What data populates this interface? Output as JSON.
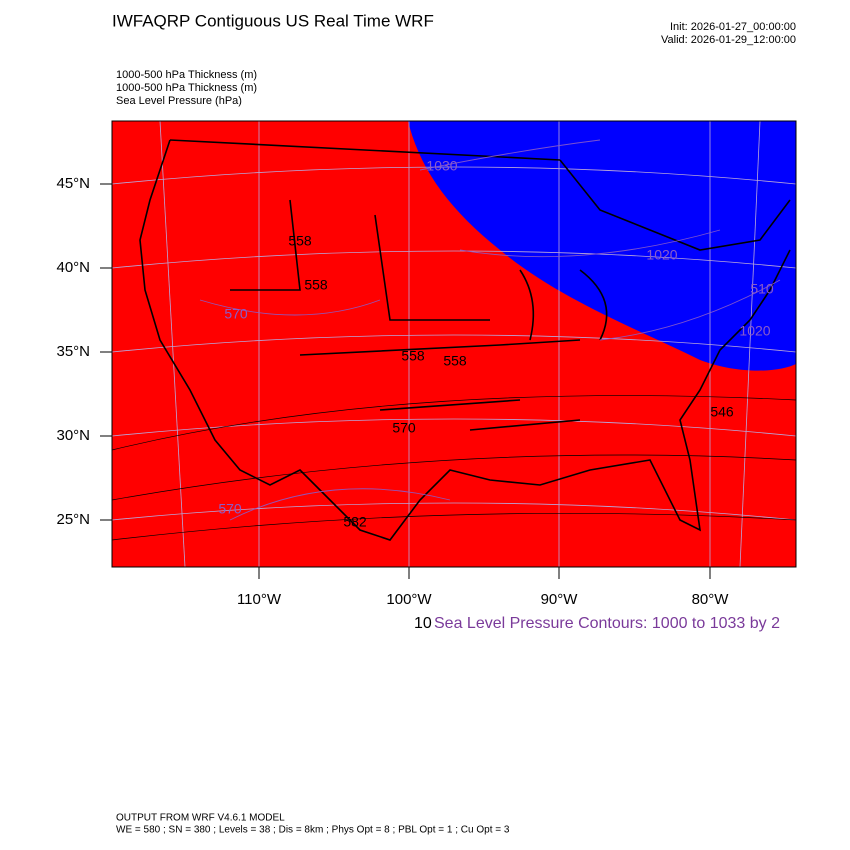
{
  "header": {
    "title": "IWFAQRP Contiguous US Real Time WRF",
    "init": "Init: 2026-01-27_00:00:00",
    "valid": "Valid: 2026-01-29_12:00:00"
  },
  "fields": [
    "1000-500 hPa Thickness   (m)",
    "1000-500 hPa Thickness   (m)",
    "Sea Level Pressure   (hPa)"
  ],
  "map": {
    "lat_labels": [
      "45°N",
      "40°N",
      "35°N",
      "30°N",
      "25°N"
    ],
    "lon_labels": [
      "110°W",
      "100°W",
      "90°W",
      "80°W"
    ],
    "contour_labels": [
      "1030",
      "1020",
      "1020",
      "510",
      "558",
      "558",
      "558",
      "570",
      "570",
      "570",
      "558",
      "546",
      "582"
    ]
  },
  "legend": {
    "prefix": "10",
    "text": "Sea Level Pressure Contours: 1000 to 1033 by 2"
  },
  "footer": {
    "model": "OUTPUT FROM WRF V4.6.1 MODEL",
    "settings": "WE = 580 ; SN = 380 ; Levels = 38 ; Dis = 8km ; Phys Opt = 8 ; PBL Opt = 1 ; Cu Opt = 3"
  }
}
